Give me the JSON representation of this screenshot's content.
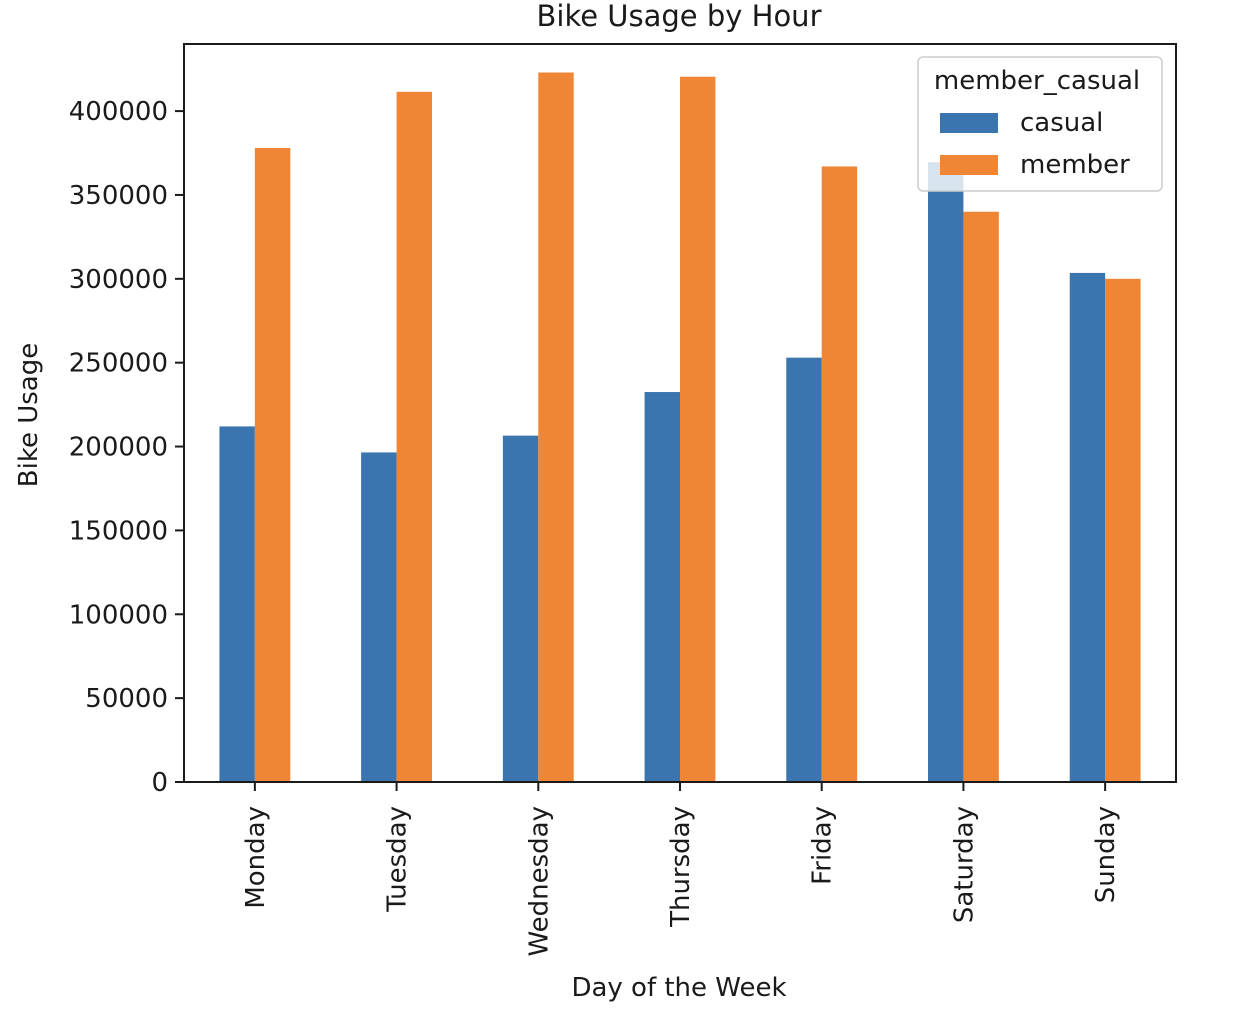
{
  "chart_data": {
    "type": "bar",
    "title": "Bike Usage by Hour",
    "xlabel": "Day of the Week",
    "ylabel": "Bike Usage",
    "categories": [
      "Monday",
      "Tuesday",
      "Wednesday",
      "Thursday",
      "Friday",
      "Saturday",
      "Sunday"
    ],
    "series": [
      {
        "name": "casual",
        "color": "#3a75b0",
        "values": [
          212000,
          196500,
          206500,
          232500,
          253000,
          369500,
          303500
        ]
      },
      {
        "name": "member",
        "color": "#ef8636",
        "values": [
          378000,
          411500,
          423000,
          420500,
          367000,
          340000,
          300000
        ]
      }
    ],
    "ylim": [
      0,
      440000
    ],
    "yticks": [
      0,
      50000,
      100000,
      150000,
      200000,
      250000,
      300000,
      350000,
      400000
    ],
    "ytick_labels": [
      "0",
      "50000",
      "100000",
      "150000",
      "200000",
      "250000",
      "300000",
      "350000",
      "400000"
    ],
    "legend": {
      "title": "member_casual",
      "placement": "top-right"
    },
    "grid": false
  }
}
